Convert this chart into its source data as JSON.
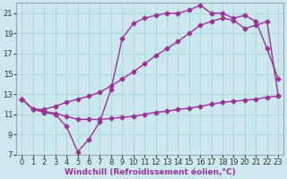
{
  "background_color": "#cce8ee",
  "grid_color": "#aad4d8",
  "line_color": "#993399",
  "marker": "D",
  "markersize": 2.5,
  "linewidth": 1.0,
  "xlim": [
    -0.5,
    23.5
  ],
  "ylim": [
    7,
    22
  ],
  "xlabel": "Windchill (Refroidissement éolien,°C)",
  "xlabel_fontsize": 6.5,
  "yticks": [
    7,
    9,
    11,
    13,
    15,
    17,
    19,
    21
  ],
  "xticks": [
    0,
    1,
    2,
    3,
    4,
    5,
    6,
    7,
    8,
    9,
    10,
    11,
    12,
    13,
    14,
    15,
    16,
    17,
    18,
    19,
    20,
    21,
    22,
    23
  ],
  "tick_fontsize": 6,
  "series1_x": [
    0,
    1,
    2,
    3,
    4,
    5,
    6,
    7,
    8,
    9,
    10,
    11,
    12,
    13,
    14,
    15,
    16,
    17,
    18,
    19,
    20,
    21,
    22,
    23
  ],
  "series1_y": [
    12.5,
    11.5,
    11.2,
    11.0,
    9.8,
    7.3,
    8.5,
    10.3,
    13.5,
    18.5,
    20.0,
    20.5,
    20.8,
    21.0,
    21.0,
    21.3,
    21.8,
    21.0,
    21.0,
    20.5,
    20.8,
    20.2,
    17.5,
    14.5
  ],
  "series2_x": [
    0,
    1,
    2,
    3,
    4,
    5,
    6,
    7,
    8,
    9,
    10,
    11,
    12,
    13,
    14,
    15,
    16,
    17,
    18,
    19,
    20,
    21,
    22,
    23
  ],
  "series2_y": [
    12.5,
    11.5,
    11.5,
    11.8,
    12.2,
    12.5,
    12.8,
    13.2,
    13.8,
    14.5,
    15.2,
    16.0,
    16.8,
    17.5,
    18.2,
    19.0,
    19.8,
    20.2,
    20.5,
    20.3,
    19.5,
    19.8,
    20.2,
    12.8
  ],
  "series3_x": [
    0,
    1,
    2,
    3,
    4,
    5,
    6,
    7,
    8,
    9,
    10,
    11,
    12,
    13,
    14,
    15,
    16,
    17,
    18,
    19,
    20,
    21,
    22,
    23
  ],
  "series3_y": [
    12.5,
    11.5,
    11.3,
    11.1,
    10.8,
    10.5,
    10.5,
    10.5,
    10.6,
    10.7,
    10.8,
    11.0,
    11.2,
    11.3,
    11.5,
    11.6,
    11.8,
    12.0,
    12.2,
    12.3,
    12.4,
    12.5,
    12.7,
    12.8
  ]
}
